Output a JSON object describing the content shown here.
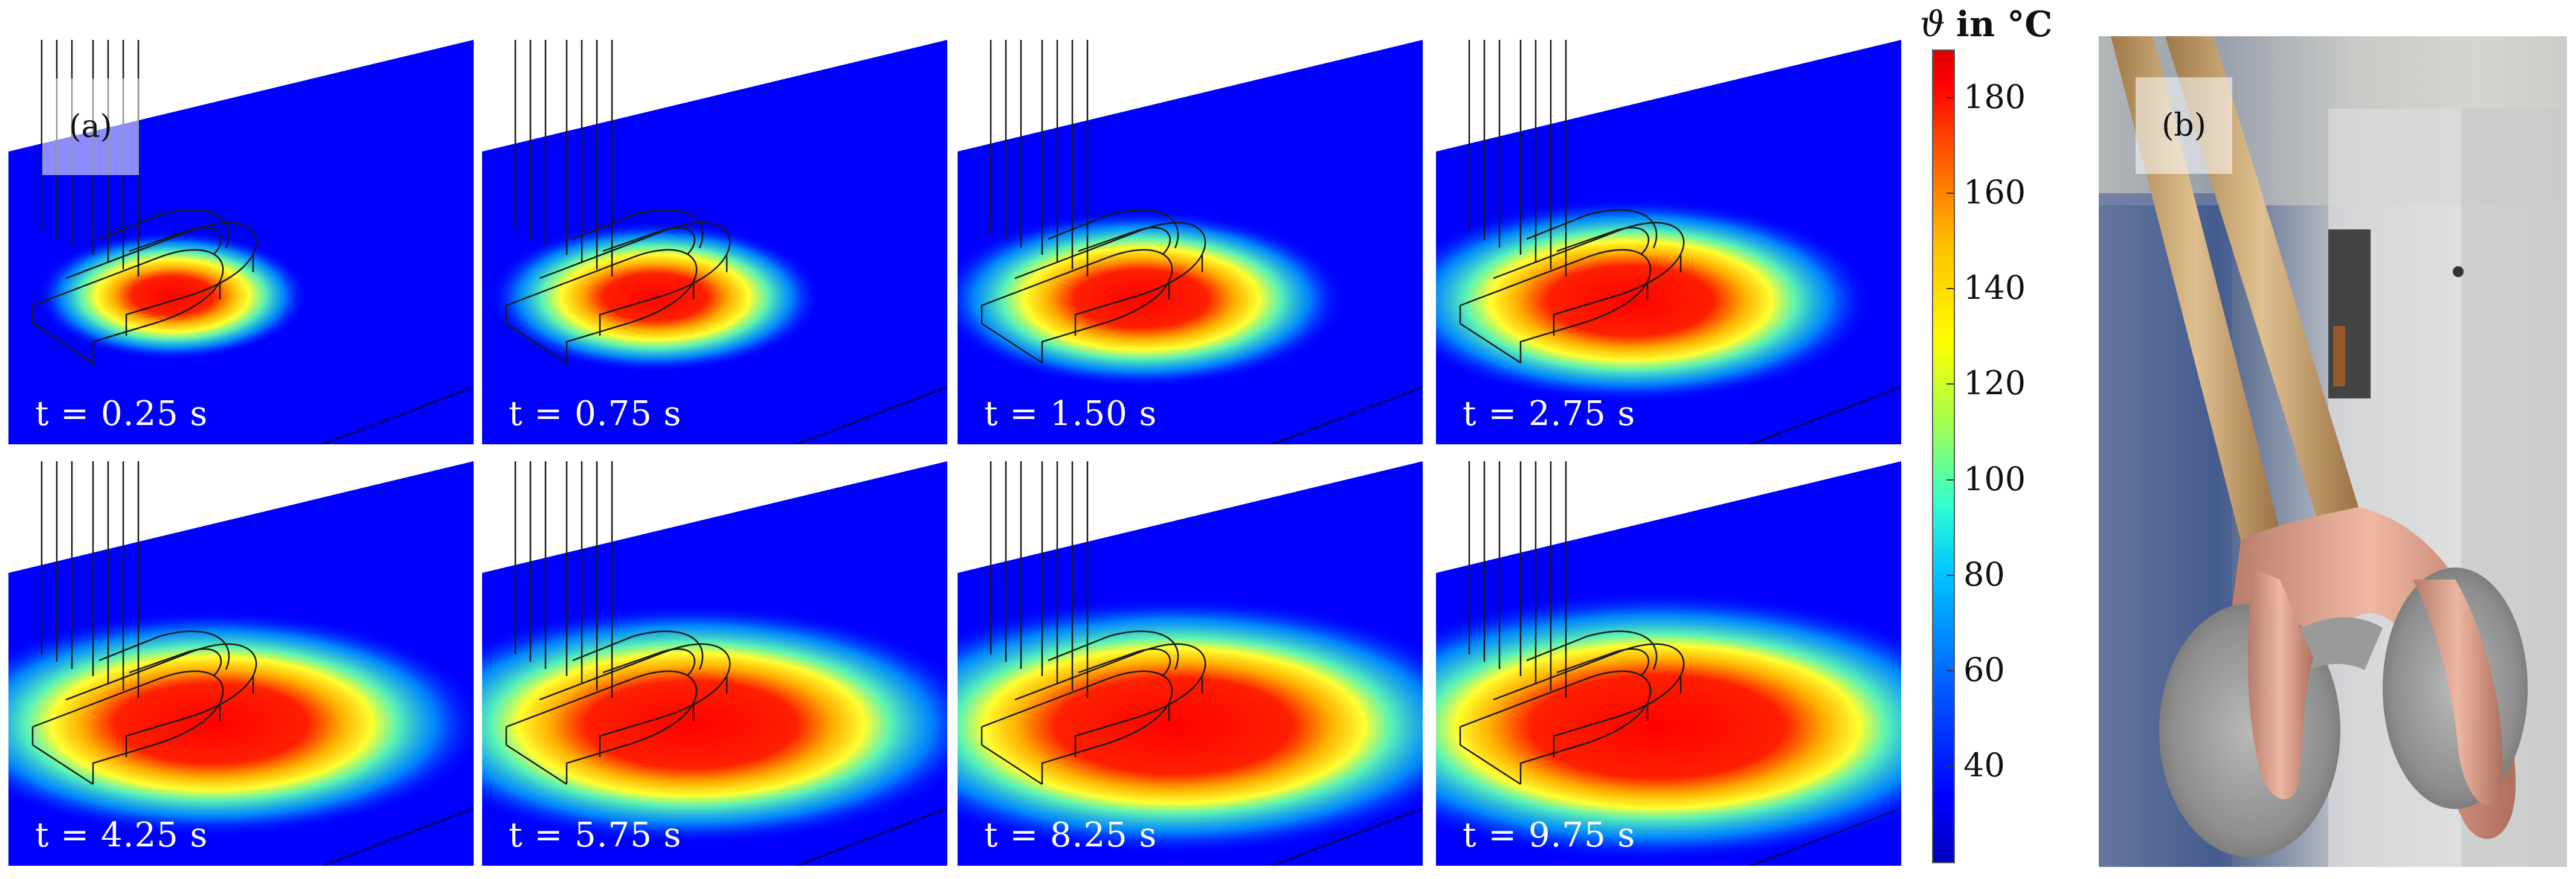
{
  "figure": {
    "panel_a_label": "(a)",
    "panel_b_label": "(b)",
    "time_labels": [
      "t = 0.25 s",
      "t = 0.75 s",
      "t = 1.50 s",
      "t = 2.75 s",
      "t = 4.25 s",
      "t = 5.75 s",
      "t = 8.25 s",
      "t = 9.75 s"
    ],
    "heat_intensity": [
      0.18,
      0.3,
      0.45,
      0.6,
      0.72,
      0.8,
      0.9,
      0.97
    ],
    "colorbar": {
      "symbol": "ϑ",
      "unit_text": "in °C",
      "ticks": [
        "180",
        "160",
        "140",
        "120",
        "100",
        "80",
        "60",
        "40"
      ],
      "tick_values": [
        180,
        160,
        140,
        120,
        100,
        80,
        60,
        40
      ],
      "min": 20,
      "max": 190,
      "colors": [
        "#0000ff",
        "#00c8ff",
        "#a0ff50",
        "#ffff00",
        "#ff5000",
        "#ff0000"
      ]
    }
  }
}
